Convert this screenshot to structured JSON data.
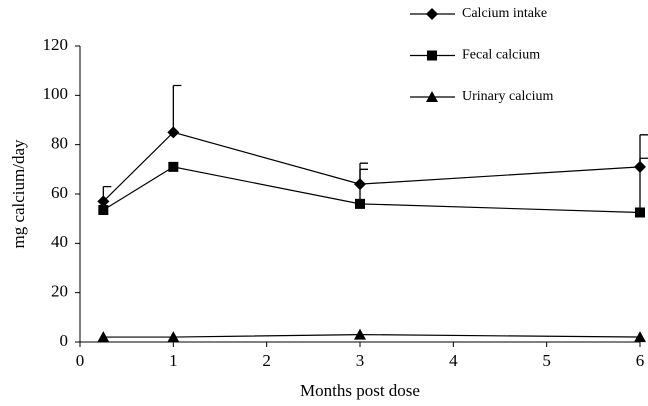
{
  "chart_data": {
    "type": "line",
    "x_label": "Months post dose",
    "y_label": "mg calcium/day",
    "x": [
      0.25,
      1,
      3,
      6
    ],
    "series": [
      {
        "name": "Calcium intake",
        "color": "#000000",
        "marker": "diamond",
        "values": [
          57,
          85,
          64,
          71
        ],
        "errors": [
          6,
          19,
          8.5,
          13
        ]
      },
      {
        "name": "Fecal calcium",
        "color": "#000000",
        "marker": "square",
        "values": [
          53.5,
          71,
          56,
          52.5
        ],
        "errors": [
          null,
          null,
          14,
          22
        ]
      },
      {
        "name": "Urinary calcium",
        "color": "#000000",
        "marker": "triangle",
        "values": [
          2,
          2,
          3,
          2
        ],
        "errors": [
          null,
          null,
          null,
          null
        ]
      }
    ],
    "xlim": [
      0,
      6
    ],
    "xticks": [
      0,
      1,
      2,
      3,
      4,
      5,
      6
    ],
    "ylim": [
      0,
      120
    ],
    "yticks": [
      0,
      20,
      40,
      60,
      80,
      100,
      120
    ],
    "legend": "top-right"
  }
}
